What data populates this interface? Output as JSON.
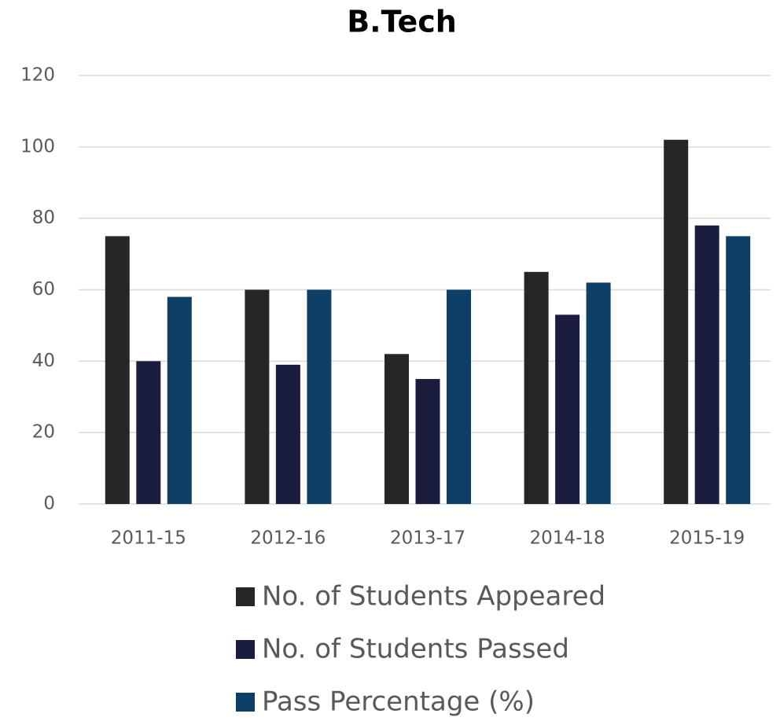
{
  "chart_data": {
    "type": "bar",
    "title": "B.Tech",
    "categories": [
      "2011-15",
      "2012-16",
      "2013-17",
      "2014-18",
      "2015-19"
    ],
    "series": [
      {
        "name": "No. of Students Appeared",
        "color": "#262626",
        "values": [
          75,
          60,
          42,
          65,
          102
        ]
      },
      {
        "name": "No. of Students Passed",
        "color": "#1b1d3e",
        "values": [
          40,
          39,
          35,
          53,
          78
        ]
      },
      {
        "name": "Pass Percentage (%)",
        "color": "#0e3f67",
        "values": [
          58,
          60,
          60,
          62,
          75
        ]
      }
    ],
    "ylim": [
      0,
      120
    ],
    "yticks": [
      0,
      20,
      40,
      60,
      80,
      100,
      120
    ],
    "grid": true,
    "legend": "bottom"
  }
}
